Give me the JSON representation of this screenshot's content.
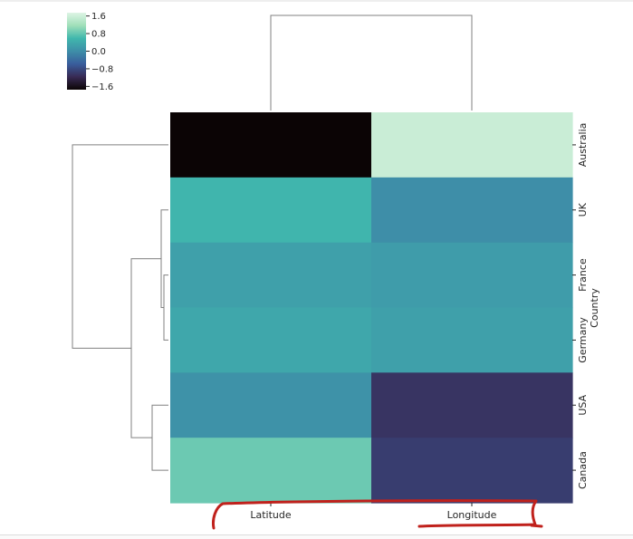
{
  "chart_data": {
    "type": "heatmap",
    "title": "",
    "columns": [
      "Latitude",
      "Longitude"
    ],
    "rows": [
      "Australia",
      "UK",
      "France",
      "Germany",
      "USA",
      "Canada"
    ],
    "ylabel": "Country",
    "xlabel": "",
    "values": [
      [
        -1.75,
        1.55
      ],
      [
        0.55,
        0.0
      ],
      [
        0.25,
        0.2
      ],
      [
        0.35,
        0.25
      ],
      [
        0.05,
        -1.05
      ],
      [
        0.85,
        -0.95
      ]
    ],
    "colorbar": {
      "ticks": [
        "1.6",
        "0.8",
        "0.0",
        "−0.8",
        "−1.6"
      ],
      "tick_values": [
        1.6,
        0.8,
        0.0,
        -0.8,
        -1.6
      ],
      "range": [
        -1.75,
        1.75
      ],
      "colormap": "mako",
      "stops": [
        "#0b0405",
        "#382a54",
        "#395d9c",
        "#3e8ea8",
        "#40b7ad",
        "#a0dfb9",
        "#def5e5"
      ]
    },
    "row_dendrogram": true,
    "col_dendrogram": true,
    "dendrogram_color": "#808080",
    "annotation_color": "#c0211c"
  }
}
